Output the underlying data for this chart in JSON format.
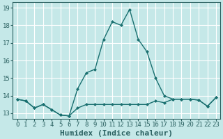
{
  "xlabel": "Humidex (Indice chaleur)",
  "background_color": "#c5e8e8",
  "grid_color": "#ffffff",
  "line_color": "#1a7070",
  "xlim": [
    -0.5,
    23.5
  ],
  "ylim": [
    12.7,
    19.3
  ],
  "yticks": [
    13,
    14,
    15,
    16,
    17,
    18,
    19
  ],
  "xticks": [
    0,
    1,
    2,
    3,
    4,
    5,
    6,
    7,
    8,
    9,
    10,
    11,
    12,
    13,
    14,
    15,
    16,
    17,
    18,
    19,
    20,
    21,
    22,
    23
  ],
  "series1_x": [
    0,
    1,
    2,
    3,
    4,
    5,
    6,
    7,
    8,
    9,
    10,
    11,
    12,
    13,
    14,
    15,
    16,
    17,
    18,
    19,
    20,
    21,
    22,
    23
  ],
  "series1_y": [
    13.8,
    13.7,
    13.3,
    13.5,
    13.2,
    12.9,
    12.85,
    13.3,
    13.5,
    13.5,
    13.5,
    13.5,
    13.5,
    13.5,
    13.5,
    13.5,
    13.7,
    13.6,
    13.8,
    13.8,
    13.8,
    13.75,
    13.4,
    13.9
  ],
  "series2_x": [
    0,
    1,
    2,
    3,
    4,
    5,
    6,
    7,
    8,
    9,
    10,
    11,
    12,
    13,
    14,
    15,
    16,
    17,
    18,
    19,
    20,
    21,
    22,
    23
  ],
  "series2_y": [
    13.8,
    13.7,
    13.3,
    13.5,
    13.2,
    12.9,
    12.85,
    14.4,
    15.3,
    15.5,
    17.2,
    18.2,
    18.0,
    18.9,
    17.2,
    16.5,
    15.0,
    14.0,
    13.8,
    13.8,
    13.8,
    13.75,
    13.4,
    13.9
  ],
  "marker": "D",
  "markersize": 2.0,
  "linewidth": 1.0,
  "tick_fontsize": 6.5,
  "xlabel_fontsize": 8.0,
  "spine_color": "#2a6060"
}
